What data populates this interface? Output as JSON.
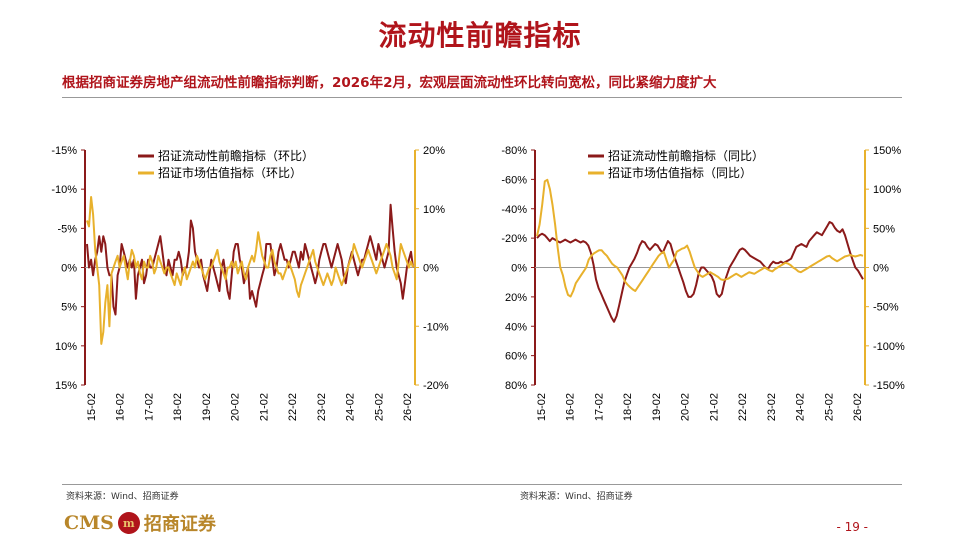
{
  "header": {
    "title": "流动性前瞻指标",
    "subtitle": "根据招商证券房地产组流动性前瞻指标判断，2026年2月，宏观层面流动性环比转向宽松，同比紧缩力度扩大"
  },
  "footer": {
    "source_left": "资料来源：Wind、招商证券",
    "source_right": "资料来源：Wind、招商证券",
    "logo_cms": "CMS",
    "logo_mark": "m",
    "logo_cn": "招商证券",
    "page_number": "- 19 -"
  },
  "colors": {
    "liquidity": "#8b1a1a",
    "valuation": "#e8b12c",
    "title": "#b0141b"
  },
  "chart_data": [
    {
      "type": "line",
      "x_labels": [
        "15-02",
        "16-02",
        "17-02",
        "18-02",
        "19-02",
        "20-02",
        "21-02",
        "22-02",
        "23-02",
        "24-02",
        "25-02",
        "26-02"
      ],
      "left_axis": {
        "ticks": [
          -15,
          -10,
          -5,
          0,
          5,
          10,
          15
        ],
        "tick_labels": [
          "-15%",
          "-10%",
          "-5%",
          "0%",
          "5%",
          "10%",
          "15%"
        ],
        "inverted": true,
        "range": [
          -15,
          15
        ]
      },
      "right_axis": {
        "ticks": [
          20,
          10,
          0,
          -10,
          -20
        ],
        "tick_labels": [
          "20%",
          "10%",
          "0%",
          "-10%",
          "-20%"
        ],
        "range": [
          -20,
          20
        ]
      },
      "legend": {
        "position": "top",
        "liquidity": "招证流动性前瞻指标（环比）",
        "valuation": "招证市场估值指标（环比）"
      },
      "series": [
        {
          "name": "招证流动性前瞻指标（环比）",
          "axis": "left",
          "values": [
            -3,
            0,
            -1,
            1,
            -1,
            -2,
            -4,
            -2,
            -4,
            -3,
            0,
            1,
            1,
            5,
            6,
            1,
            0,
            -3,
            -2,
            -1,
            0,
            -1,
            0,
            -1,
            4,
            1,
            0,
            -1,
            2,
            1,
            -1,
            0,
            0,
            -1,
            -2,
            -3,
            -4,
            -2,
            0,
            1,
            -1,
            0,
            1,
            -1,
            -1,
            -2,
            -1,
            1,
            0,
            0,
            -2,
            -6,
            -5,
            -2,
            -1,
            0,
            -1,
            1,
            2,
            3,
            1,
            -1,
            0,
            1,
            2,
            3,
            0,
            -1,
            1,
            3,
            4,
            1,
            -2,
            -3,
            -3,
            -1,
            0,
            2,
            1,
            0,
            4,
            3,
            4,
            5,
            3,
            2,
            1,
            0,
            -3,
            -3,
            -3,
            -1,
            1,
            0,
            -2,
            -3,
            -2,
            -1,
            -1,
            0,
            -1,
            -2,
            -2,
            -1,
            0,
            -2,
            -1,
            -3,
            -2,
            -1,
            0,
            1,
            2,
            1,
            -1,
            -2,
            -3,
            -3,
            -2,
            -1,
            0,
            -1,
            -2,
            -3,
            -2,
            -1,
            1,
            2,
            0,
            -1,
            -2,
            -1,
            0,
            1,
            0,
            -1,
            -1,
            -2,
            -3,
            -4,
            -3,
            -2,
            -1,
            -3,
            -2,
            -1,
            0,
            -1,
            -2,
            -8,
            -5,
            -2,
            0,
            1,
            2,
            4,
            2,
            0,
            -1,
            -2,
            0
          ]
        },
        {
          "name": "招证市场估值指标（环比）",
          "axis": "right",
          "values": [
            8,
            7,
            12,
            9,
            3,
            0,
            -3,
            -13,
            -11,
            -6,
            -3,
            -10,
            -1,
            0,
            1,
            2,
            0,
            1,
            2,
            0,
            -2,
            1,
            3,
            2,
            0,
            1,
            -1,
            -2,
            1,
            0,
            0,
            2,
            1,
            -1,
            0,
            2,
            1,
            0,
            -1,
            0,
            0,
            -1,
            -2,
            -3,
            -1,
            -2,
            -3,
            -1,
            0,
            -2,
            -1,
            0,
            1,
            0,
            2,
            1,
            0,
            -1,
            -2,
            -1,
            0,
            0,
            1,
            2,
            3,
            1,
            0,
            -1,
            -2,
            0,
            0,
            1,
            0,
            1,
            -1,
            0,
            1,
            -1,
            -2,
            0,
            1,
            2,
            1,
            3,
            6,
            4,
            2,
            1,
            0,
            0,
            2,
            3,
            1,
            0,
            -1,
            -1,
            -2,
            -1,
            0,
            1,
            0,
            -1,
            -2,
            -4,
            -5,
            -3,
            -2,
            -1,
            0,
            1,
            2,
            3,
            1,
            0,
            -1,
            -2,
            -3,
            -2,
            -1,
            -2,
            -3,
            -2,
            0,
            -1,
            -2,
            -3,
            -2,
            -1,
            0,
            1,
            2,
            4,
            3,
            2,
            1,
            0,
            1,
            2,
            3,
            2,
            1,
            0,
            -1,
            0,
            1,
            2,
            3,
            4,
            3,
            2,
            0,
            -1,
            -2,
            1,
            4,
            3,
            2,
            1,
            0,
            1,
            0
          ]
        }
      ],
      "grid": false
    },
    {
      "type": "line",
      "x_labels": [
        "15-02",
        "16-02",
        "17-02",
        "18-02",
        "19-02",
        "20-02",
        "21-02",
        "22-02",
        "23-02",
        "24-02",
        "25-02",
        "26-02"
      ],
      "left_axis": {
        "ticks": [
          -80,
          -60,
          -40,
          -20,
          0,
          20,
          40,
          60,
          80
        ],
        "tick_labels": [
          "-80%",
          "-60%",
          "-40%",
          "-20%",
          "0%",
          "20%",
          "40%",
          "60%",
          "80%"
        ],
        "inverted": true,
        "range": [
          -80,
          80
        ]
      },
      "right_axis": {
        "ticks": [
          150,
          100,
          50,
          0,
          -50,
          -100,
          -150
        ],
        "tick_labels": [
          "150%",
          "100%",
          "50%",
          "0%",
          "-50%",
          "-100%",
          "-150%"
        ],
        "range": [
          -150,
          150
        ]
      },
      "legend": {
        "position": "top",
        "liquidity": "招证流动性前瞻指标（同比）",
        "valuation": "招证市场估值指标（同比）"
      },
      "series": [
        {
          "name": "招证流动性前瞻指标（同比）",
          "axis": "left",
          "values": [
            -20,
            -22,
            -23,
            -22,
            -20,
            -18,
            -20,
            -19,
            -18,
            -17,
            -18,
            -19,
            -18,
            -17,
            -18,
            -19,
            -18,
            -17,
            -18,
            -17,
            -15,
            -10,
            -2,
            8,
            14,
            18,
            22,
            26,
            30,
            34,
            37,
            33,
            26,
            18,
            10,
            5,
            0,
            -3,
            -6,
            -10,
            -15,
            -18,
            -17,
            -14,
            -12,
            -14,
            -16,
            -15,
            -12,
            -10,
            -14,
            -18,
            -16,
            -10,
            -5,
            0,
            5,
            10,
            16,
            20,
            20,
            18,
            12,
            4,
            0,
            0,
            2,
            4,
            6,
            10,
            18,
            20,
            18,
            10,
            5,
            0,
            -3,
            -6,
            -9,
            -12,
            -13,
            -12,
            -10,
            -8,
            -7,
            -6,
            -5,
            -4,
            -2,
            0,
            1,
            -2,
            -4,
            -3,
            -3,
            -4,
            -3,
            -4,
            -5,
            -6,
            -10,
            -14,
            -15,
            -16,
            -15,
            -14,
            -18,
            -20,
            -22,
            -24,
            -23,
            -22,
            -25,
            -28,
            -31,
            -30,
            -27,
            -25,
            -24,
            -26,
            -22,
            -16,
            -10,
            -5,
            0,
            2,
            5,
            8
          ]
        },
        {
          "name": "招证市场估值指标（同比）",
          "axis": "right",
          "values": [
            40,
            55,
            80,
            110,
            112,
            100,
            80,
            55,
            25,
            0,
            -10,
            -25,
            -35,
            -37,
            -30,
            -20,
            -15,
            -10,
            -5,
            0,
            10,
            15,
            18,
            20,
            22,
            22,
            18,
            15,
            10,
            5,
            2,
            0,
            -5,
            -10,
            -18,
            -22,
            -25,
            -28,
            -30,
            -25,
            -20,
            -15,
            -10,
            -5,
            0,
            5,
            10,
            15,
            18,
            20,
            10,
            0,
            5,
            10,
            20,
            22,
            24,
            25,
            28,
            20,
            10,
            0,
            -5,
            -10,
            -12,
            -10,
            -8,
            -6,
            -8,
            -10,
            -12,
            -15,
            -16,
            -15,
            -14,
            -12,
            -10,
            -8,
            -10,
            -12,
            -10,
            -8,
            -6,
            -7,
            -8,
            -6,
            -4,
            -2,
            0,
            -2,
            -4,
            -5,
            -2,
            0,
            2,
            4,
            6,
            5,
            3,
            0,
            -2,
            -5,
            -6,
            -4,
            -2,
            0,
            2,
            4,
            6,
            8,
            10,
            12,
            14,
            15,
            12,
            10,
            8,
            10,
            12,
            14,
            15,
            16,
            15,
            14,
            15,
            16,
            15
          ]
        }
      ],
      "grid": false
    }
  ]
}
